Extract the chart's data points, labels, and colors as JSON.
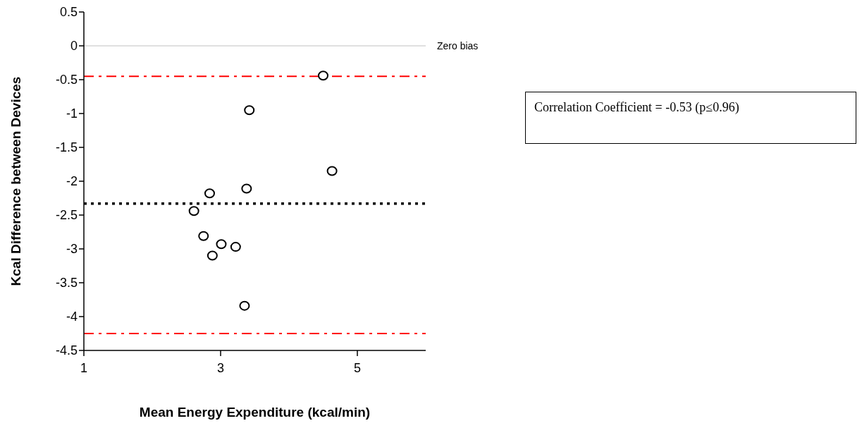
{
  "chart_data": {
    "type": "scatter",
    "xlabel": "Mean Energy Expenditure (kcal/min)",
    "ylabel": "Kcal Difference between Devices",
    "x": [
      4.5,
      3.42,
      4.63,
      3.38,
      2.84,
      2.61,
      2.75,
      3.01,
      3.22,
      2.88,
      3.35
    ],
    "values": [
      -0.44,
      -0.95,
      -1.85,
      -2.11,
      -2.18,
      -2.44,
      -2.81,
      -2.93,
      -2.97,
      -3.1,
      -3.84
    ],
    "color": "#000000",
    "marker": "circle",
    "xlim": [
      1,
      6
    ],
    "xticks": [
      1,
      3,
      5
    ],
    "ylim": [
      -4.5,
      0.5
    ],
    "yticks": [
      0.5,
      0,
      -0.5,
      -1,
      -1.5,
      -2,
      -2.5,
      -3,
      -3.5,
      -4,
      -4.5
    ],
    "ref_lines": [
      {
        "axis": "y",
        "value": 0,
        "label": "Zero bias",
        "color": "#c0c0c0",
        "line_style": "solid"
      },
      {
        "axis": "y",
        "value": -0.45,
        "color": "#ff0000",
        "line_style": "dashdot"
      },
      {
        "axis": "y",
        "value": -2.33,
        "color": "#000000",
        "line_style": "dotted"
      },
      {
        "axis": "y",
        "value": -4.25,
        "color": "#ff0000",
        "line_style": "dashdot"
      }
    ],
    "annotations": [
      "Correlation Coefficient = -0.53 (p≤0.96)"
    ]
  }
}
